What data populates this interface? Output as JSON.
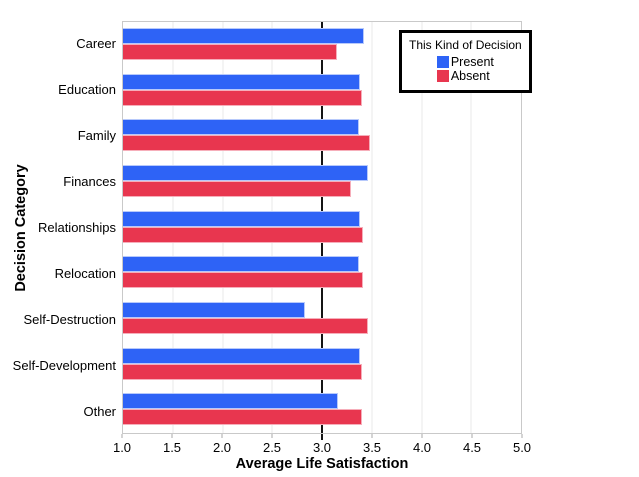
{
  "chart_data": {
    "type": "bar",
    "orientation": "horizontal",
    "xlabel": "Average Life Satisfaction",
    "ylabel": "Decision Category",
    "xlim": [
      1.0,
      5.0
    ],
    "xticks": [
      "1.0",
      "1.5",
      "2.0",
      "2.5",
      "3.0",
      "3.5",
      "4.0",
      "4.5",
      "5.0"
    ],
    "grid": true,
    "reference_line_x": 3.0,
    "categories": [
      "Career",
      "Education",
      "Family",
      "Finances",
      "Relationships",
      "Relocation",
      "Self-Destruction",
      "Self-Development",
      "Other"
    ],
    "series": [
      {
        "name": "Present",
        "color": "#2e63f6",
        "values": [
          3.42,
          3.38,
          3.37,
          3.46,
          3.38,
          3.37,
          2.83,
          3.38,
          3.16
        ]
      },
      {
        "name": "Absent",
        "color": "#e8364f",
        "values": [
          3.15,
          3.4,
          3.48,
          3.29,
          3.41,
          3.41,
          3.46,
          3.4,
          3.4
        ]
      }
    ],
    "legend": {
      "title": "This Kind of Decision",
      "position": "top-right",
      "items": [
        {
          "label": "Present",
          "color": "#2e63f6"
        },
        {
          "label": "Absent",
          "color": "#e8364f"
        }
      ]
    }
  },
  "style_colors": {
    "frame": "#c9c9c9",
    "gridline": "#e9e9e9",
    "reference_line": "#141414",
    "present_bar": "#2e63f6",
    "absent_bar": "#e8364f"
  }
}
